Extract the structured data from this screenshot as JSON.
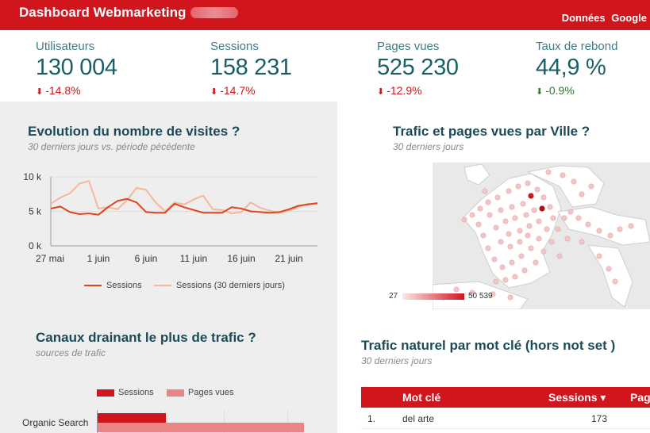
{
  "header": {
    "title": "Dashboard Webmarketing",
    "links": [
      "Données",
      "Google"
    ]
  },
  "kpis": [
    {
      "label": "Utilisateurs",
      "value": "130 004",
      "delta": "-14.8%",
      "trend": "down",
      "color": "#d0151d"
    },
    {
      "label": "Sessions",
      "value": "158 231",
      "delta": "-14.7%",
      "trend": "down",
      "color": "#d0151d"
    },
    {
      "label": "Pages vues",
      "value": "525 230",
      "delta": "-12.9%",
      "trend": "down",
      "color": "#d0151d"
    },
    {
      "label": "Taux de rebond",
      "value": "44,9 %",
      "delta": "-0.9%",
      "trend": "down",
      "color": "#2e7d32"
    }
  ],
  "visits": {
    "title": "Evolution du nombre de visites ?",
    "subtitle": "30 derniers jours vs. période pécédente"
  },
  "city": {
    "title": "Trafic et pages vues par Ville ?",
    "subtitle": "30 derniers jours",
    "scale_min": "27",
    "scale_max": "50 539"
  },
  "channels": {
    "title": "Canaux drainant le plus de trafic ?",
    "subtitle": "sources de trafic",
    "legend": [
      "Sessions",
      "Pages vues"
    ],
    "row_label": "Organic Search"
  },
  "keywords": {
    "title": "Trafic naturel par mot clé (hors not set )",
    "subtitle": "30 derniers jours",
    "columns": [
      "Mot clé",
      "Sessions ▾",
      "Pag"
    ],
    "rows": [
      {
        "rank": "1.",
        "keyword": "del arte",
        "sessions": "173"
      }
    ]
  },
  "chart_data": [
    {
      "type": "line",
      "title": "Evolution du nombre de visites ?",
      "subtitle": "30 derniers jours vs. période pécédente",
      "xlabel": "",
      "ylabel": "",
      "x_tick_labels": [
        "27 mai",
        "1 juin",
        "6 juin",
        "11 juin",
        "16 juin",
        "21 juin"
      ],
      "y_tick_labels": [
        "10 k",
        "5 k",
        "0 k"
      ],
      "ylim": [
        0,
        10000
      ],
      "x_days": 30,
      "series": [
        {
          "name": "Sessions",
          "color": "#e0451e",
          "values": [
            5400,
            5700,
            4900,
            4600,
            4700,
            4500,
            5600,
            6500,
            6800,
            6300,
            4900,
            4800,
            4800,
            6100,
            5600,
            5200,
            4800,
            4800,
            4800,
            5600,
            5400,
            5000,
            4900,
            4800,
            4900,
            5300,
            5800,
            6000,
            6200
          ]
        },
        {
          "name": "Sessions (30 derniers jours)",
          "color": "#f7b79a",
          "values": [
            6100,
            7000,
            7600,
            9000,
            9400,
            5400,
            5600,
            5300,
            6600,
            8400,
            8100,
            6300,
            5000,
            6300,
            6000,
            6700,
            7300,
            5300,
            5200,
            4700,
            4900,
            6300,
            5500,
            5100,
            4800,
            5100,
            5600,
            6100,
            6000
          ]
        }
      ],
      "legend": "bottom"
    },
    {
      "type": "bar",
      "orientation": "horizontal",
      "title": "Canaux drainant le plus de trafic ?",
      "categories": [
        "Organic Search"
      ],
      "series": [
        {
          "name": "Sessions",
          "color": "#d0151d",
          "values": [
            0.33
          ]
        },
        {
          "name": "Pages vues",
          "color": "#ea8585",
          "values": [
            1.0
          ]
        }
      ],
      "legend": "top"
    }
  ]
}
